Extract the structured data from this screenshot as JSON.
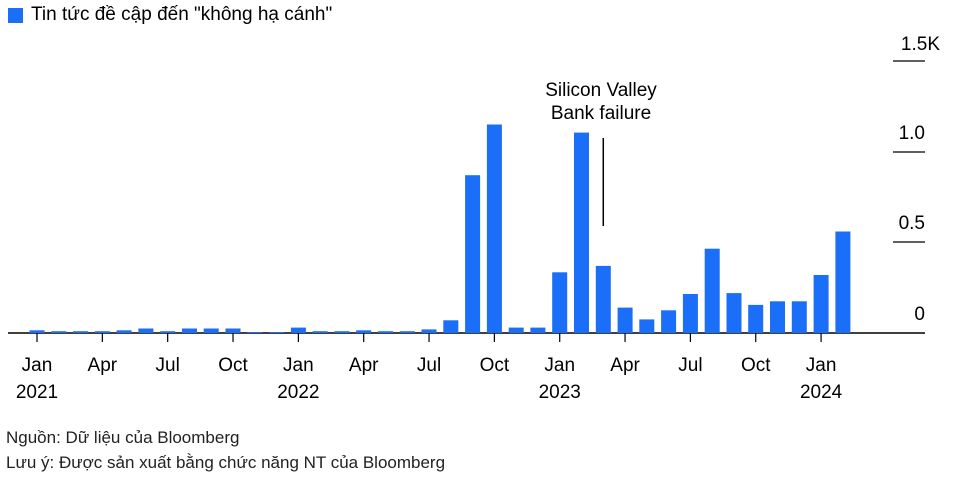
{
  "chart_data": {
    "type": "bar",
    "legend": [
      {
        "label": "Tin tức đề cập đến \"không hạ cánh\"",
        "color": "#1a6ef7"
      }
    ],
    "y_ticks": [
      "1.5K",
      "1.0",
      "0.5",
      "0"
    ],
    "ylim": [
      0,
      1500
    ],
    "x_tick_months": [
      "Jan",
      "Apr",
      "Jul",
      "Oct",
      "Jan",
      "Apr",
      "Jul",
      "Oct",
      "Jan",
      "Apr",
      "Jul",
      "Oct",
      "Jan"
    ],
    "x_tick_years": [
      "2021",
      "2022",
      "2023",
      "2024"
    ],
    "categories": [
      "2021-01",
      "2021-02",
      "2021-03",
      "2021-04",
      "2021-05",
      "2021-06",
      "2021-07",
      "2021-08",
      "2021-09",
      "2021-10",
      "2021-11",
      "2021-12",
      "2022-01",
      "2022-02",
      "2022-03",
      "2022-04",
      "2022-05",
      "2022-06",
      "2022-07",
      "2022-08",
      "2022-09",
      "2022-10",
      "2022-11",
      "2022-12",
      "2023-01",
      "2023-02",
      "2023-03",
      "2023-04",
      "2023-05",
      "2023-06",
      "2023-07",
      "2023-08",
      "2023-09",
      "2023-10",
      "2023-11",
      "2023-12",
      "2024-01",
      "2024-02"
    ],
    "series": [
      {
        "values": [
          15,
          10,
          10,
          10,
          15,
          25,
          10,
          25,
          25,
          25,
          5,
          5,
          30,
          10,
          10,
          15,
          10,
          10,
          20,
          70,
          870,
          1150,
          30,
          30,
          335,
          1105,
          370,
          140,
          75,
          125,
          215,
          465,
          220,
          155,
          175,
          175,
          320,
          560
        ],
        "color": "#1a6ef7"
      }
    ],
    "annotation": {
      "text_line1": "Silicon Valley",
      "text_line2": "Bank failure",
      "category": "2023-03"
    },
    "grid": false
  },
  "footer": {
    "source": "Nguồn: Dữ liệu của Bloomberg",
    "note": "Lưu ý: Được sản xuất bằng chức năng NT của Bloomberg"
  }
}
